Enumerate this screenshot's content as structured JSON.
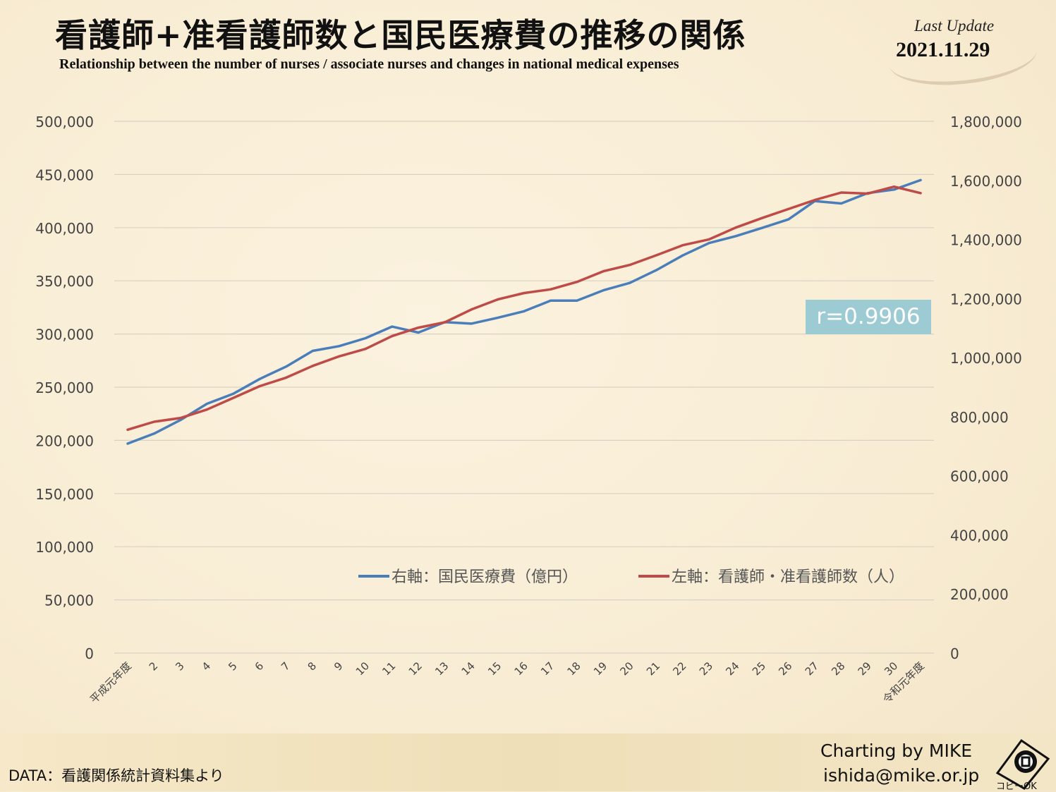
{
  "header": {
    "title": "看護師+准看護師数と国民医療費の推移の関係",
    "subtitle": "Relationship between the number of nurses / associate nurses and changes in national medical expenses",
    "update_label": "Last Update",
    "update_date": "2021.11.29"
  },
  "annotation": {
    "correlation": "r=0.9906"
  },
  "footer": {
    "data_source": "DATA：看護関係統計資料集より",
    "credit_line1": "Charting by MIKE",
    "credit_line2": "ishida@mike.or.jp",
    "copy_ok": "コピーOK"
  },
  "colors": {
    "blue_series": "#4a7ebb",
    "red_series": "#be4b48",
    "badge": "#9ccbd4"
  },
  "chart_data": {
    "type": "line",
    "categories": [
      "平成元年度",
      "2",
      "3",
      "4",
      "5",
      "6",
      "7",
      "8",
      "9",
      "10",
      "11",
      "12",
      "13",
      "14",
      "15",
      "16",
      "17",
      "18",
      "19",
      "20",
      "21",
      "22",
      "23",
      "24",
      "25",
      "26",
      "27",
      "28",
      "29",
      "30",
      "令和元年度"
    ],
    "y_left": {
      "ticks": [
        "0",
        "50,000",
        "100,000",
        "150,000",
        "200,000",
        "250,000",
        "300,000",
        "350,000",
        "400,000",
        "450,000",
        "500,000"
      ],
      "ylim": [
        0,
        500000
      ]
    },
    "y_right": {
      "ticks": [
        "0",
        "200,000",
        "400,000",
        "600,000",
        "800,000",
        "1,000,000",
        "1,200,000",
        "1,400,000",
        "1,600,000",
        "1,800,000"
      ],
      "ylim": [
        0,
        1800000
      ]
    },
    "grid": true,
    "legend_position": "bottom-center",
    "series": [
      {
        "name": "右軸：国民医療費（億円）",
        "axis": "right",
        "color": "#4a7ebb",
        "values": [
          709000,
          743000,
          789000,
          844000,
          878000,
          928000,
          970000,
          1023000,
          1039000,
          1066000,
          1105000,
          1085000,
          1120000,
          1115000,
          1135000,
          1157000,
          1193000,
          1193000,
          1228000,
          1253000,
          1296000,
          1346000,
          1388000,
          1411000,
          1439000,
          1468000,
          1530000,
          1522000,
          1557000,
          1569000,
          1601000
        ]
      },
      {
        "name": "左軸：看護師・准看護師数（人）",
        "axis": "left",
        "color": "#be4b48",
        "values": [
          210000,
          217500,
          221000,
          229000,
          240000,
          251000,
          259000,
          270000,
          279000,
          286000,
          298000,
          306000,
          311000,
          323000,
          332500,
          338500,
          342000,
          349000,
          359000,
          365000,
          374000,
          383500,
          389000,
          400000,
          409000,
          417500,
          426000,
          433000,
          432000,
          438500,
          432500
        ]
      }
    ]
  }
}
